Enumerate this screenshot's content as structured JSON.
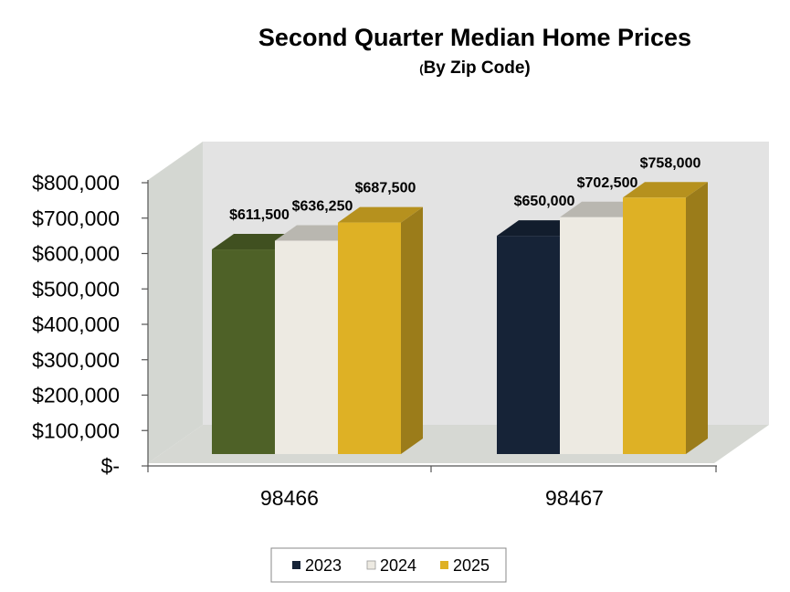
{
  "chart_data": {
    "type": "bar",
    "title": "Second Quarter Median Home Prices",
    "subtitle_paren": "(",
    "subtitle_text": "By Zip Code)",
    "categories": [
      "98466",
      "98467"
    ],
    "series": [
      {
        "name": "2023",
        "values": [
          611500,
          650000
        ],
        "data_labels": [
          "$611,500",
          "$650,000"
        ]
      },
      {
        "name": "2024",
        "values": [
          636250,
          702500
        ],
        "data_labels": [
          "$636,250",
          "$702,500"
        ]
      },
      {
        "name": "2025",
        "values": [
          687500,
          758000
        ],
        "data_labels": [
          "$687,500",
          "$758,000"
        ]
      }
    ],
    "ylim": [
      0,
      800000
    ],
    "yticks": [
      0,
      100000,
      200000,
      300000,
      400000,
      500000,
      600000,
      700000,
      800000
    ],
    "ytick_labels": [
      "$-",
      "$100,000",
      "$200,000",
      "$300,000",
      "$400,000",
      "$500,000",
      "$600,000",
      "$700,000",
      "$800,000"
    ],
    "bar_colors": {
      "98466": [
        "#4e6127",
        "#edeae2",
        "#deb125"
      ],
      "98467": [
        "#162337",
        "#edeae2",
        "#deb125"
      ]
    },
    "legend_colors": [
      "#162337",
      "#edeae2",
      "#deb125"
    ],
    "legend_position": "bottom",
    "grid": false,
    "wall_color": "#e3e3e3",
    "side_wall_color": "#d4d7d2"
  }
}
